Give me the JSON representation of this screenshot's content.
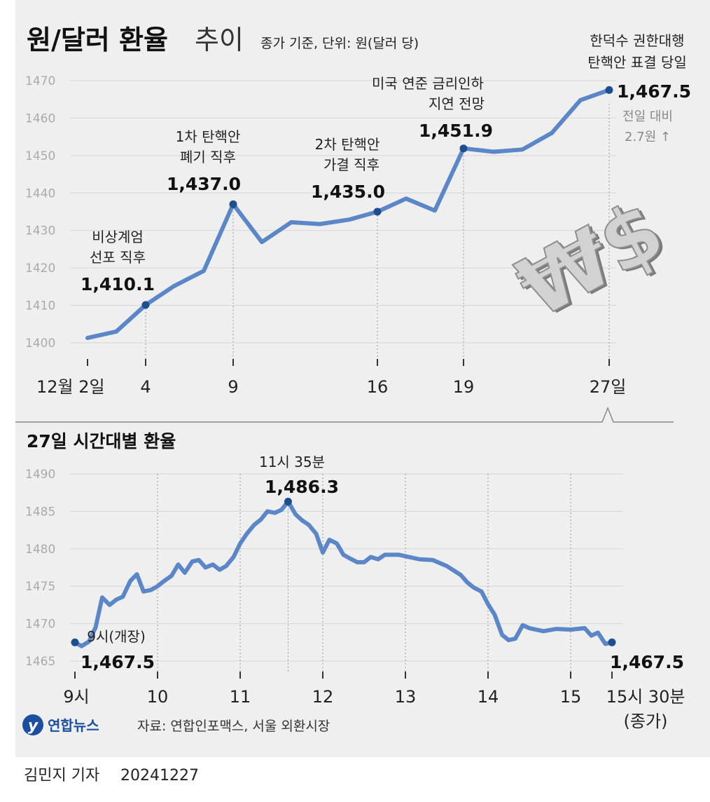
{
  "header": {
    "title_bold": "원/달러 환율",
    "title_light": "추이",
    "subtitle": "종가 기준, 단위: 원(달러 당)"
  },
  "chart_data": [
    {
      "type": "line",
      "title": "원/달러 환율 추이",
      "ylim": [
        1400,
        1470
      ],
      "yticks": [
        "1470",
        "1460",
        "1450",
        "1440",
        "1430",
        "1420",
        "1410",
        "1400"
      ],
      "x_tick_labels": [
        "12월 2일",
        "4",
        "9",
        "16",
        "19",
        "27일"
      ],
      "series": [
        {
          "x": [
            "12/2",
            "12/3",
            "12/4",
            "12/5",
            "12/6",
            "12/9",
            "12/10",
            "12/11",
            "12/12",
            "12/13",
            "12/16",
            "12/17",
            "12/18",
            "12/19",
            "12/20",
            "12/23",
            "12/24",
            "12/26",
            "12/27"
          ],
          "values": [
            1401.3,
            1403.0,
            1410.1,
            1415.2,
            1419.2,
            1437.0,
            1426.9,
            1432.2,
            1431.7,
            1432.9,
            1435.0,
            1438.5,
            1435.3,
            1451.9,
            1451.0,
            1451.6,
            1456.0,
            1464.8,
            1467.5
          ]
        }
      ],
      "annotations": [
        {
          "line1": "비상계엄",
          "line2": "선포 직후",
          "value": "1,410.1"
        },
        {
          "line1": "1차 탄핵안",
          "line2": "폐기 직후",
          "value": "1,437.0"
        },
        {
          "line1": "2차 탄핵안",
          "line2": "가결 직후",
          "value": "1,435.0"
        },
        {
          "line1": "미국 연준 금리인하",
          "line2": "지연 전망",
          "value": "1,451.9"
        },
        {
          "line1": "한덕수 권한대행",
          "line2": "탄핵안 표결 당일",
          "value": "1,467.5"
        }
      ],
      "change_note": {
        "line1": "전일 대비",
        "line2": "2.7원 ↑"
      },
      "grid": true
    },
    {
      "type": "line",
      "title": "27일 시간대별 환율",
      "ylim": [
        1465,
        1490
      ],
      "yticks": [
        "1490",
        "1485",
        "1480",
        "1475",
        "1470",
        "1465"
      ],
      "x_tick_labels": [
        "9시",
        "10",
        "11",
        "12",
        "13",
        "14",
        "15",
        "15시 30분"
      ],
      "x_tick_sublabel": "(종가)",
      "series": [
        {
          "x": [
            9.0,
            9.08,
            9.17,
            9.25,
            9.33,
            9.42,
            9.5,
            9.58,
            9.67,
            9.75,
            9.83,
            9.92,
            10.0,
            10.08,
            10.17,
            10.25,
            10.33,
            10.42,
            10.5,
            10.58,
            10.67,
            10.75,
            10.83,
            10.92,
            11.0,
            11.08,
            11.17,
            11.25,
            11.33,
            11.42,
            11.5,
            11.58,
            11.67,
            11.75,
            11.83,
            11.92,
            12.0,
            12.08,
            12.17,
            12.25,
            12.33,
            12.42,
            12.5,
            12.58,
            12.67,
            12.75,
            12.83,
            12.92,
            13.0,
            13.17,
            13.33,
            13.5,
            13.67,
            13.75,
            13.83,
            13.92,
            14.0,
            14.08,
            14.17,
            14.25,
            14.33,
            14.42,
            14.5,
            14.67,
            14.83,
            15.0,
            15.17,
            15.25,
            15.33,
            15.42,
            15.5
          ],
          "values": [
            1467.5,
            1467.0,
            1467.6,
            1469.5,
            1473.5,
            1472.5,
            1473.2,
            1473.6,
            1475.7,
            1476.6,
            1474.3,
            1474.5,
            1475.0,
            1475.7,
            1476.4,
            1477.9,
            1476.8,
            1478.3,
            1478.5,
            1477.5,
            1477.9,
            1477.2,
            1477.7,
            1478.9,
            1480.7,
            1482.0,
            1483.2,
            1483.9,
            1485.0,
            1484.8,
            1485.2,
            1486.3,
            1484.6,
            1483.8,
            1483.2,
            1482.0,
            1479.5,
            1481.2,
            1480.7,
            1479.2,
            1478.7,
            1478.2,
            1478.2,
            1478.9,
            1478.6,
            1479.2,
            1479.2,
            1479.2,
            1479.0,
            1478.6,
            1478.5,
            1477.7,
            1476.5,
            1475.5,
            1474.8,
            1474.3,
            1472.6,
            1471.2,
            1468.5,
            1467.8,
            1468.0,
            1469.8,
            1469.4,
            1469.0,
            1469.3,
            1469.2,
            1469.4,
            1468.4,
            1468.8,
            1467.3,
            1467.5
          ]
        }
      ],
      "annotations": [
        {
          "line1": "9시(개장)",
          "value": "1,467.5"
        },
        {
          "line1": "11시 35분",
          "value": "1,486.3"
        },
        {
          "value": "1,467.5"
        }
      ],
      "grid": true
    }
  ],
  "footer": {
    "logo_text": "연합뉴스",
    "source": "자료: 연합인포맥스, 서울 외환시장",
    "byline": "김민지 기자",
    "date": "20241227"
  },
  "colors": {
    "line": "#5b86c8",
    "marker": "#1d4e8f",
    "panel_bg": "#efefef",
    "grid": "#d6d6d6"
  }
}
